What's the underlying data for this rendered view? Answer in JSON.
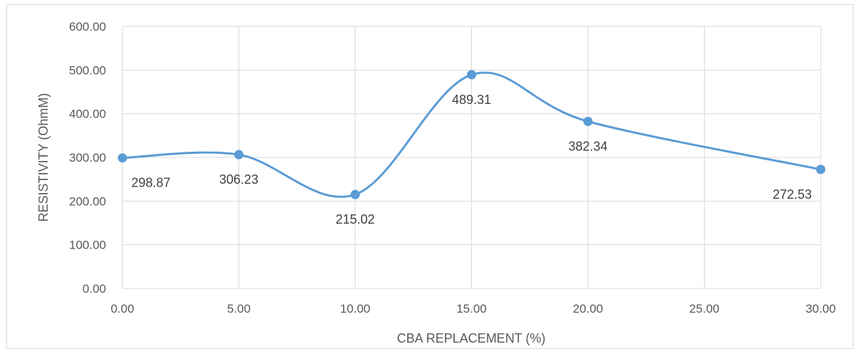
{
  "chart_data": {
    "type": "line",
    "smooth": true,
    "x": [
      0,
      5,
      10,
      15,
      20,
      30
    ],
    "series": [
      {
        "values": [
          298.87,
          306.23,
          215.02,
          489.31,
          382.34,
          272.53
        ]
      }
    ],
    "data_labels": [
      "298.87",
      "306.23",
      "215.02",
      "489.31",
      "382.34",
      "272.53"
    ],
    "xlabel": "CBA REPLACEMENT (%)",
    "ylabel": "RESISTIVITY (OhmM)",
    "xlim": [
      0,
      30
    ],
    "ylim": [
      0,
      600
    ],
    "xticks": [
      "0.00",
      "5.00",
      "10.00",
      "15.00",
      "20.00",
      "25.00",
      "30.00"
    ],
    "yticks": [
      "0.00",
      "100.00",
      "200.00",
      "300.00",
      "400.00",
      "500.00",
      "600.00"
    ],
    "grid": true,
    "legend": "none",
    "colors": {
      "line": "#5b9bd5",
      "grid": "#d9d9d9",
      "text": "#595959"
    }
  }
}
